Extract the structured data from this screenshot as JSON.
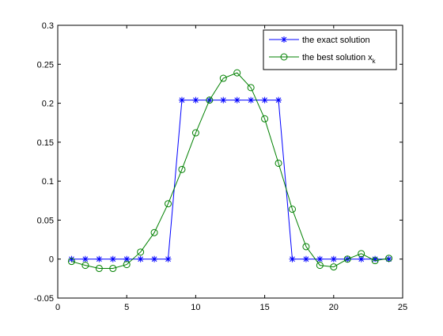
{
  "chart_data": {
    "type": "line",
    "title": "",
    "xlabel": "",
    "ylabel": "",
    "xlim": [
      0,
      25
    ],
    "ylim": [
      -0.05,
      0.3
    ],
    "xticks": [
      0,
      5,
      10,
      15,
      20,
      25
    ],
    "yticks": [
      -0.05,
      0,
      0.05,
      0.1,
      0.15,
      0.2,
      0.25,
      0.3
    ],
    "xtick_labels": [
      "0",
      "5",
      "10",
      "15",
      "20",
      "25"
    ],
    "ytick_labels": [
      "-0.05",
      "0",
      "0.05",
      "0.1",
      "0.15",
      "0.2",
      "0.25",
      "0.3"
    ],
    "grid": false,
    "legend_position": "top-right",
    "series": [
      {
        "name": "the exact solution",
        "color": "#0000ff",
        "marker": "star",
        "x": [
          1,
          2,
          3,
          4,
          5,
          6,
          7,
          8,
          9,
          10,
          11,
          12,
          13,
          14,
          15,
          16,
          17,
          18,
          19,
          20,
          21,
          22,
          23,
          24
        ],
        "y": [
          0,
          0,
          0,
          0,
          0,
          0,
          0,
          0,
          0.204,
          0.204,
          0.204,
          0.204,
          0.204,
          0.204,
          0.204,
          0.204,
          0,
          0,
          0,
          0,
          0,
          0,
          0,
          0
        ]
      },
      {
        "name": "the best solution x",
        "name_subscript": "k",
        "color": "#008000",
        "marker": "circle",
        "x": [
          1,
          2,
          3,
          4,
          5,
          6,
          7,
          8,
          9,
          10,
          11,
          12,
          13,
          14,
          15,
          16,
          17,
          18,
          19,
          20,
          21,
          22,
          23,
          24
        ],
        "y": [
          -0.003,
          -0.008,
          -0.012,
          -0.012,
          -0.007,
          0.009,
          0.034,
          0.071,
          0.115,
          0.162,
          0.204,
          0.232,
          0.239,
          0.22,
          0.18,
          0.123,
          0.064,
          0.016,
          -0.008,
          -0.01,
          0.0,
          0.007,
          -0.002,
          0.001
        ]
      }
    ]
  }
}
